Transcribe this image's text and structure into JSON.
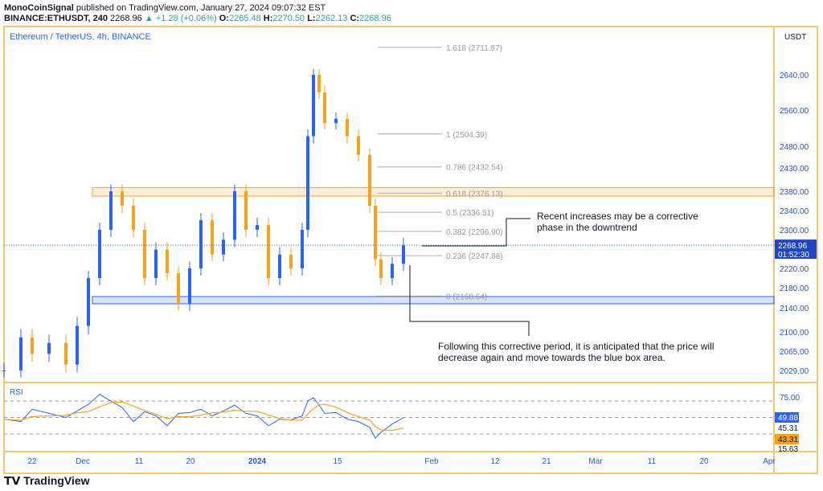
{
  "header": {
    "publisher": "MonoCoinSignal",
    "published_text": "published on TradingView.com, January 27, 2024 09:07:32 EST",
    "symbol": "BINANCE:ETHUSDT, 240",
    "last": "2268.96",
    "change": "+1.28 (+0.06%)",
    "o_label": "O:",
    "o": "2265.48",
    "h_label": "H:",
    "h": "2270.50",
    "l_label": "L:",
    "l": "2262.13",
    "c_label": "C:",
    "c": "2268.96"
  },
  "chart_title": "Ethereum / TetherUS, 4h, BINANCE",
  "brand": "TradingView",
  "colors": {
    "up": "#2962ff",
    "down": "#f7a21b",
    "frame": "#f9c574",
    "rsi": "#2962ff",
    "rsi_ma": "#f7a21b"
  },
  "chart_data": {
    "type": "candlestick",
    "currency": "USDT",
    "price_ticks": [
      2640,
      2560,
      2480,
      2430,
      2380,
      2340,
      2300,
      2220,
      2180,
      2140,
      2100,
      2065,
      2029
    ],
    "last_price": "2268.96",
    "countdown": "01:52:30",
    "time_ticks": [
      "22",
      "Dec",
      "11",
      "20",
      "2024",
      "15",
      "Feb",
      "12",
      "21",
      "Mar",
      "11",
      "20",
      "Apr"
    ],
    "closes": [
      [
        "2023-11-17",
        2029
      ],
      [
        "2023-11-20",
        2090
      ],
      [
        "2023-11-22",
        2060
      ],
      [
        "2023-11-25",
        2080
      ],
      [
        "2023-11-28",
        2040
      ],
      [
        "2023-11-30",
        2110
      ],
      [
        "2023-12-02",
        2200
      ],
      [
        "2023-12-04",
        2300
      ],
      [
        "2023-12-06",
        2380
      ],
      [
        "2023-12-08",
        2350
      ],
      [
        "2023-12-10",
        2300
      ],
      [
        "2023-12-12",
        2200
      ],
      [
        "2023-12-14",
        2260
      ],
      [
        "2023-12-16",
        2210
      ],
      [
        "2023-12-18",
        2150
      ],
      [
        "2023-12-20",
        2220
      ],
      [
        "2023-12-22",
        2320
      ],
      [
        "2023-12-24",
        2250
      ],
      [
        "2023-12-26",
        2280
      ],
      [
        "2023-12-28",
        2380
      ],
      [
        "2023-12-30",
        2300
      ],
      [
        "2024-01-01",
        2310
      ],
      [
        "2024-01-03",
        2200
      ],
      [
        "2024-01-05",
        2250
      ],
      [
        "2024-01-07",
        2220
      ],
      [
        "2024-01-09",
        2300
      ],
      [
        "2024-01-10",
        2500
      ],
      [
        "2024-01-11",
        2640
      ],
      [
        "2024-01-12",
        2600
      ],
      [
        "2024-01-13",
        2530
      ],
      [
        "2024-01-15",
        2540
      ],
      [
        "2024-01-17",
        2500
      ],
      [
        "2024-01-19",
        2460
      ],
      [
        "2024-01-21",
        2350
      ],
      [
        "2024-01-22",
        2240
      ],
      [
        "2024-01-23",
        2200
      ],
      [
        "2024-01-25",
        2230
      ],
      [
        "2024-01-27",
        2268.96
      ]
    ],
    "fib_levels": [
      {
        "label": "1.618 (2711.87)",
        "price": 2711.87
      },
      {
        "label": "1 (2504.39)",
        "price": 2504.39
      },
      {
        "label": "0.786 (2432.54)",
        "price": 2432.54
      },
      {
        "label": "0.618 (2376.13)",
        "price": 2376.13
      },
      {
        "label": "0.5 (2336.51)",
        "price": 2336.51
      },
      {
        "label": "0.382 (2296.90)",
        "price": 2296.9
      },
      {
        "label": "0.236 (2247.88)",
        "price": 2247.88
      },
      {
        "label": "0 (2168.64)",
        "price": 2168.64
      }
    ],
    "zones": [
      {
        "type": "resistance",
        "from": 2370,
        "to": 2388,
        "color": "#f7a21b"
      },
      {
        "type": "support",
        "from": 2150,
        "to": 2168,
        "color": "#2962ff"
      }
    ],
    "rsi": {
      "label": "RSI",
      "ticks": [
        "75.00",
        "15.63"
      ],
      "value": "49.88",
      "ma_value": "43.31",
      "other_value": "45.31",
      "levels": [
        70,
        50,
        30
      ],
      "values": [
        48,
        45,
        60,
        55,
        50,
        58,
        66,
        78,
        70,
        62,
        45,
        57,
        52,
        40,
        55,
        56,
        60,
        52,
        58,
        65,
        55,
        52,
        40,
        48,
        47,
        52,
        70,
        74,
        65,
        55,
        56,
        48,
        45,
        38,
        25,
        32,
        42,
        49.88
      ]
    }
  },
  "annotations": [
    "Recent increases may be a corrective phase in the downtrend",
    "Following this corrective period, it is anticipated that the price will decrease again and move towards the blue box area."
  ]
}
